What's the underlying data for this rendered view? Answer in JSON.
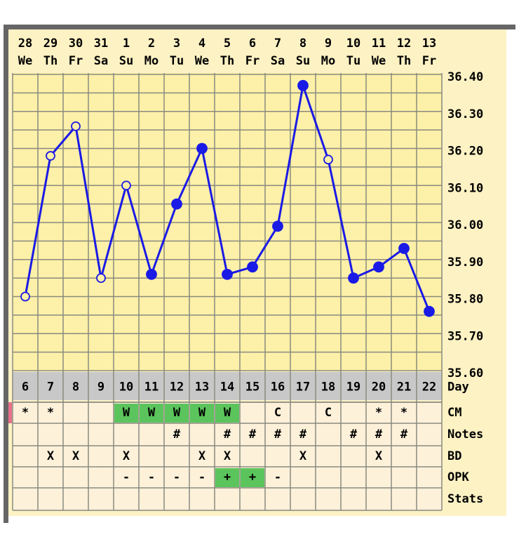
{
  "chart_data": {
    "type": "line",
    "categories": [
      "28",
      "29",
      "30",
      "31",
      "1",
      "2",
      "3",
      "4",
      "5",
      "6",
      "7",
      "8",
      "9",
      "10",
      "11",
      "12",
      "13"
    ],
    "weekdays": [
      "We",
      "Th",
      "Fr",
      "Sa",
      "Su",
      "Mo",
      "Tu",
      "We",
      "Th",
      "Fr",
      "Sa",
      "Su",
      "Mo",
      "Tu",
      "We",
      "Th",
      "Fr"
    ],
    "series": [
      {
        "color": "#1a1ae6",
        "values": [
          35.8,
          36.18,
          36.26,
          35.85,
          36.1,
          35.86,
          36.05,
          36.2,
          35.86,
          35.88,
          35.99,
          36.37,
          36.17,
          35.85,
          35.88,
          35.93,
          35.76
        ],
        "marker_open": [
          true,
          true,
          true,
          true,
          true,
          false,
          false,
          false,
          false,
          false,
          false,
          false,
          true,
          false,
          false,
          false,
          false
        ]
      }
    ],
    "ylim": [
      35.6,
      36.4
    ],
    "yticks": [
      {
        "value": 35.6,
        "label": "35.60"
      },
      {
        "value": 35.7,
        "label": "35.70"
      },
      {
        "value": 35.8,
        "label": "35.80"
      },
      {
        "value": 35.9,
        "label": "35.90"
      },
      {
        "value": 36.0,
        "label": "36.00"
      },
      {
        "value": 36.1,
        "label": "36.10"
      },
      {
        "value": 36.2,
        "label": "36.20"
      },
      {
        "value": 36.3,
        "label": "36.30"
      },
      {
        "value": 36.4,
        "label": "36.40"
      }
    ],
    "grid": true
  },
  "table": {
    "rows": [
      {
        "label": "Day",
        "cells": [
          "6",
          "7",
          "8",
          "9",
          "10",
          "11",
          "12",
          "13",
          "14",
          "15",
          "16",
          "17",
          "18",
          "19",
          "20",
          "21",
          "22"
        ]
      },
      {
        "label": "CM",
        "cells": [
          "*",
          "*",
          null,
          null,
          "W",
          "W",
          "W",
          "W",
          "W",
          null,
          "C",
          null,
          "C",
          null,
          "*",
          "*",
          null
        ],
        "highlight": "W"
      },
      {
        "label": "Notes",
        "cells": [
          null,
          null,
          null,
          null,
          null,
          null,
          "#",
          null,
          "#",
          "#",
          "#",
          "#",
          null,
          "#",
          "#",
          "#",
          null
        ]
      },
      {
        "label": "BD",
        "cells": [
          null,
          "X",
          "X",
          null,
          "X",
          null,
          null,
          "X",
          "X",
          null,
          null,
          "X",
          null,
          null,
          "X",
          null,
          null
        ]
      },
      {
        "label": "OPK",
        "cells": [
          null,
          null,
          null,
          null,
          "-",
          "-",
          "-",
          "-",
          "+",
          "+",
          "-",
          null,
          null,
          null,
          null,
          null,
          null
        ],
        "highlight": "+"
      },
      {
        "label": "Stats",
        "cells": [
          null,
          null,
          null,
          null,
          null,
          null,
          null,
          null,
          null,
          null,
          null,
          null,
          null,
          null,
          null,
          null,
          null
        ]
      }
    ]
  }
}
